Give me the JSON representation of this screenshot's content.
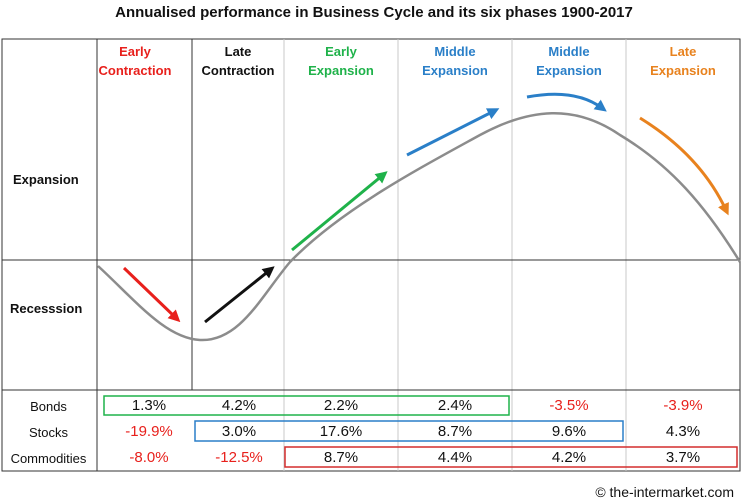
{
  "title": "Annualised performance in Business Cycle and its six phases 1900-2017",
  "phases": [
    {
      "line1": "Early",
      "line2": "Contraction",
      "color": "#e8201c"
    },
    {
      "line1": "Late",
      "line2": "Contraction",
      "color": "#111111"
    },
    {
      "line1": "Early",
      "line2": "Expansion",
      "color": "#1fb24a"
    },
    {
      "line1": "Middle",
      "line2": "Expansion",
      "color": "#2a7fc8"
    },
    {
      "line1": "Middle",
      "line2": "Expansion",
      "color": "#2a7fc8"
    },
    {
      "line1": "Late",
      "line2": "Expansion",
      "color": "#e8821e"
    }
  ],
  "rows": {
    "expansion": "Expansion",
    "recession": "Recesssion"
  },
  "assets": [
    {
      "name": "Bonds",
      "values": [
        "1.3%",
        "4.2%",
        "2.2%",
        "2.4%",
        "-3.5%",
        "-3.9%"
      ],
      "negative": [
        false,
        false,
        false,
        false,
        true,
        true
      ]
    },
    {
      "name": "Stocks",
      "values": [
        "-19.9%",
        "3.0%",
        "17.6%",
        "8.7%",
        "9.6%",
        "4.3%"
      ],
      "negative": [
        true,
        false,
        false,
        false,
        false,
        false
      ]
    },
    {
      "name": "Commodities",
      "values": [
        "-8.0%",
        "-12.5%",
        "8.7%",
        "4.4%",
        "4.2%",
        "3.7%"
      ],
      "negative": [
        true,
        true,
        false,
        false,
        false,
        false
      ]
    }
  ],
  "colors": {
    "positive": "#111111",
    "negative": "#e8201c",
    "curve": "#8c8c8c",
    "grid": "#c8c8c8",
    "bonds_box": "#1fb24a",
    "stocks_box": "#2a7fc8",
    "commodities_box": "#d42d2d"
  },
  "arrow_icons": [
    "red-arrow-icon",
    "black-arrow-icon",
    "green-arrow-icon",
    "blue-arrow-icon",
    "blue-curved-arrow-icon",
    "orange-curved-arrow-icon"
  ],
  "copyright": "© the-intermarket.com"
}
